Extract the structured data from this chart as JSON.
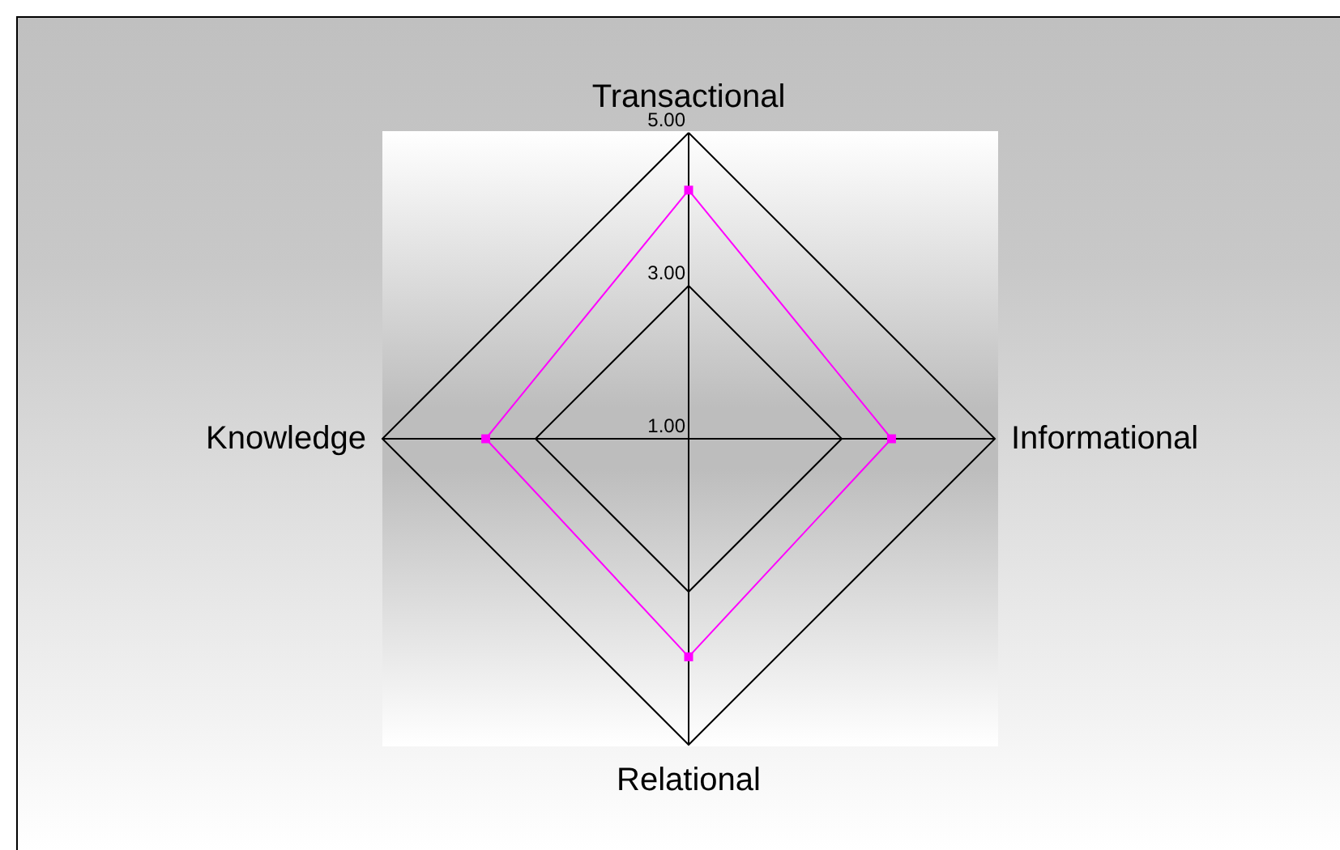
{
  "chart_data": {
    "type": "radar",
    "categories": [
      "Transactional",
      "Informational",
      "Relational",
      "Knowledge"
    ],
    "series": [
      {
        "color": "#ff00ff",
        "values": [
          4.25,
          3.65,
          3.85,
          3.65
        ]
      }
    ],
    "ylim": [
      1,
      5
    ],
    "yticks": [
      {
        "value": 1,
        "label": "1.00"
      },
      {
        "value": 3,
        "label": "3.00"
      },
      {
        "value": 5,
        "label": "5.00"
      }
    ],
    "grid": true,
    "marker": "square"
  }
}
